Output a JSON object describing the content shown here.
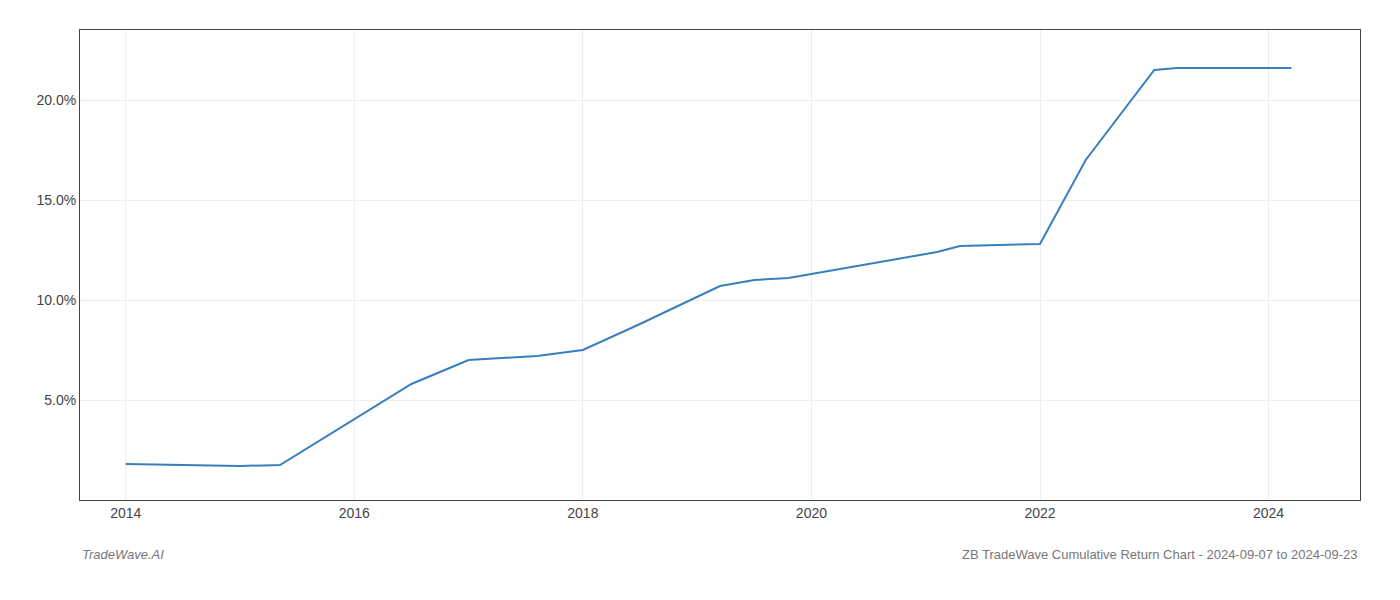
{
  "chart_data": {
    "type": "line",
    "title": "ZB TradeWave Cumulative Return Chart - 2024-09-07 to 2024-09-23",
    "annotations": [
      "TradeWave.AI"
    ],
    "x": [
      2014.0,
      2014.8,
      2015.0,
      2015.35,
      2016.5,
      2017.0,
      2017.6,
      2018.0,
      2018.5,
      2019.2,
      2019.5,
      2019.8,
      2020.2,
      2020.6,
      2021.1,
      2021.3,
      2022.0,
      2022.4,
      2023.0,
      2023.2,
      2024.2
    ],
    "values": [
      1.8,
      1.75,
      1.7,
      1.75,
      5.8,
      7.0,
      7.2,
      7.5,
      8.8,
      10.7,
      11.0,
      11.1,
      11.5,
      11.9,
      12.4,
      12.7,
      12.8,
      17.0,
      21.5,
      21.6,
      21.6
    ],
    "color": "#3a7ebf",
    "xlim": [
      2013.6,
      2024.8
    ],
    "ylim": [
      0.0,
      23.5
    ],
    "xticks": [
      2014,
      2016,
      2018,
      2020,
      2022,
      2024
    ],
    "yticks": [
      {
        "value": 5.0,
        "label": "5.0%"
      },
      {
        "value": 10.0,
        "label": "10.0%"
      },
      {
        "value": 15.0,
        "label": "15.0%"
      },
      {
        "value": 20.0,
        "label": "20.0%"
      }
    ],
    "grid": true
  }
}
